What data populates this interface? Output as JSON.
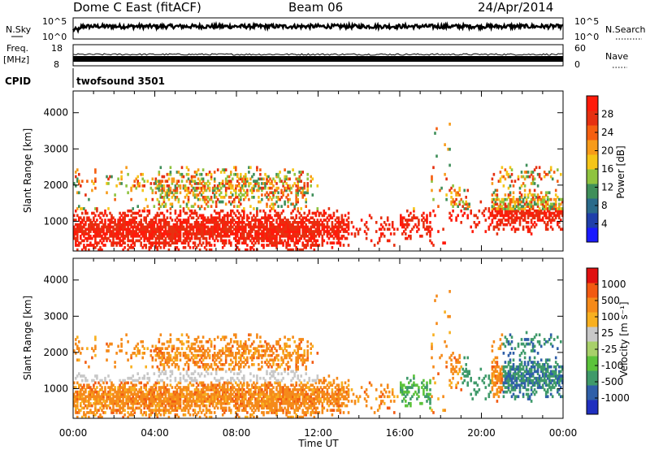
{
  "header": {
    "station": "Dome C East (fitACF)",
    "beam": "Beam 06",
    "date": "24/Apr/2014"
  },
  "panels": {
    "nsky": {
      "left_label": "N.Sky",
      "right_label": "N.Search",
      "left_ticks": [
        "10^5",
        "10^0"
      ],
      "right_ticks": [
        "10^5",
        "10^0"
      ]
    },
    "freq": {
      "left_label_1": "Freq.",
      "left_label_2": "[MHz]",
      "left_ticks": [
        "18",
        "8"
      ],
      "right_label": "Nave",
      "right_ticks": [
        "60",
        "0"
      ]
    },
    "cpid": {
      "label": "CPID",
      "value": "twofsound 3501"
    }
  },
  "colors": {
    "power": [
      "#1a1aff",
      "#1f3faa",
      "#2a6a8a",
      "#3f8f5a",
      "#8fc33f",
      "#f5c518",
      "#f79b1a",
      "#f55f10",
      "#e63010",
      "#ff1a0a"
    ],
    "velocity": [
      "#e01010",
      "#f25a12",
      "#f58a1a",
      "#f8b020",
      "#c8c8c8",
      "#a8d06a",
      "#5cc33b",
      "#3f9a6a",
      "#2f5fa8",
      "#1f2fbf"
    ]
  },
  "chart_data": [
    {
      "type": "heatmap",
      "name": "power",
      "ylabel": "Slant Range [km]",
      "colorbar_label": "Power [dB]",
      "colorbar_ticks": [
        "28",
        "24",
        "20",
        "16",
        "12",
        "8",
        "4"
      ],
      "y_ticks": [
        1000,
        2000,
        3000,
        4000
      ],
      "x_ticks": [
        "00:00",
        "04:00",
        "08:00",
        "12:00",
        "16:00",
        "20:00",
        "00:00"
      ],
      "ylim": [
        180,
        4600
      ],
      "xlim_hours": [
        0,
        24
      ]
    },
    {
      "type": "heatmap",
      "name": "velocity",
      "ylabel": "Slant Range [km]",
      "colorbar_label": "Velocity [m s⁻¹]",
      "colorbar_ticks": [
        "1000",
        "500",
        "100",
        "25",
        "-25",
        "-100",
        "-500",
        "-1000"
      ],
      "y_ticks": [
        1000,
        2000,
        3000,
        4000
      ],
      "x_ticks": [
        "00:00",
        "04:00",
        "08:00",
        "12:00",
        "16:00",
        "20:00",
        "00:00"
      ],
      "xlabel": "Time UT",
      "ylim": [
        180,
        4600
      ],
      "xlim_hours": [
        0,
        24
      ]
    }
  ]
}
